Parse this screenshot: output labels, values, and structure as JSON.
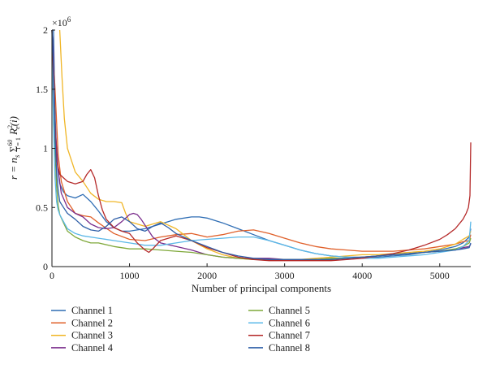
{
  "chart_data": {
    "type": "line",
    "title": "",
    "xlabel": "Number of principal components",
    "ylabel": "r = n_s Σ_{i=1}^{60} R_e^2(i)",
    "ylabel_parts": {
      "main": "r = n",
      "sub_s": "s",
      "sigma": " Σ",
      "sum_sup": "60",
      "sum_sub": "i = 1",
      "term": " R",
      "term_sup": "2",
      "term_sub": "e",
      "arg": "(i)"
    },
    "y_multiplier": "×10",
    "y_multiplier_exp": "6",
    "xlim": [
      0,
      5400
    ],
    "ylim": [
      0,
      2
    ],
    "xticks": [
      0,
      1000,
      2000,
      3000,
      4000,
      5000
    ],
    "xtick_labels": [
      "0",
      "1000",
      "2000",
      "3000",
      "4000",
      "5000"
    ],
    "yticks": [
      0,
      0.5,
      1,
      1.5,
      2
    ],
    "ytick_labels": [
      "0",
      "0.5",
      "1",
      "1.5",
      "2"
    ],
    "grid": false,
    "legend_position": "bottom, two columns",
    "series": [
      {
        "name": "Channel 1",
        "color": "#2e6db4",
        "x": [
          0,
          20,
          40,
          60,
          80,
          100,
          150,
          200,
          300,
          400,
          500,
          600,
          700,
          800,
          900,
          1000,
          1200,
          1400,
          1600,
          1800,
          1900,
          2000,
          2200,
          2400,
          2600,
          2800,
          3000,
          3200,
          3400,
          3600,
          3800,
          4000,
          4200,
          4400,
          4600,
          4800,
          5000,
          5200,
          5300,
          5380,
          5400
        ],
        "y": [
          2.0,
          2.0,
          1.3,
          0.95,
          0.8,
          0.7,
          0.63,
          0.6,
          0.58,
          0.61,
          0.55,
          0.47,
          0.38,
          0.33,
          0.3,
          0.3,
          0.32,
          0.36,
          0.4,
          0.42,
          0.42,
          0.41,
          0.37,
          0.32,
          0.27,
          0.22,
          0.18,
          0.14,
          0.11,
          0.09,
          0.08,
          0.08,
          0.08,
          0.09,
          0.1,
          0.12,
          0.14,
          0.17,
          0.2,
          0.25,
          0.32
        ]
      },
      {
        "name": "Channel 2",
        "color": "#e0602a",
        "x": [
          0,
          40,
          80,
          120,
          200,
          300,
          400,
          500,
          600,
          800,
          1000,
          1200,
          1400,
          1600,
          1800,
          2000,
          2200,
          2400,
          2600,
          2800,
          3000,
          3200,
          3400,
          3600,
          3800,
          4000,
          4200,
          4400,
          4600,
          4800,
          5000,
          5200,
          5300,
          5380,
          5400
        ],
        "y": [
          2.0,
          1.5,
          0.95,
          0.72,
          0.55,
          0.45,
          0.43,
          0.42,
          0.37,
          0.28,
          0.23,
          0.22,
          0.25,
          0.27,
          0.28,
          0.25,
          0.27,
          0.3,
          0.31,
          0.28,
          0.24,
          0.2,
          0.17,
          0.15,
          0.14,
          0.13,
          0.13,
          0.13,
          0.14,
          0.15,
          0.17,
          0.19,
          0.21,
          0.22,
          0.27
        ]
      },
      {
        "name": "Channel 3",
        "color": "#f0b627",
        "x": [
          100,
          130,
          160,
          200,
          300,
          400,
          500,
          600,
          700,
          800,
          900,
          950,
          1000,
          1100,
          1200,
          1400,
          1600,
          1800,
          2000,
          2200,
          2400,
          2600,
          2800,
          3000,
          3200,
          3400,
          3600,
          3800,
          4000,
          4200,
          4400,
          4600,
          4800,
          5000,
          5200,
          5300,
          5380,
          5400
        ],
        "y": [
          2.0,
          1.6,
          1.25,
          1.0,
          0.8,
          0.72,
          0.62,
          0.57,
          0.55,
          0.55,
          0.54,
          0.45,
          0.38,
          0.36,
          0.34,
          0.38,
          0.32,
          0.22,
          0.15,
          0.1,
          0.07,
          0.06,
          0.06,
          0.06,
          0.06,
          0.07,
          0.08,
          0.09,
          0.1,
          0.1,
          0.11,
          0.12,
          0.13,
          0.15,
          0.19,
          0.23,
          0.26,
          0.3
        ]
      },
      {
        "name": "Channel 4",
        "color": "#7a2d8c",
        "x": [
          0,
          20,
          40,
          80,
          120,
          200,
          300,
          400,
          500,
          600,
          700,
          800,
          900,
          1000,
          1050,
          1100,
          1150,
          1200,
          1300,
          1400,
          1600,
          1800,
          2000,
          2200,
          2400,
          2600,
          2800,
          3000,
          3200,
          3400,
          3600,
          3800,
          4000,
          4200,
          4400,
          4600,
          4800,
          5000,
          5200,
          5300,
          5380,
          5400
        ],
        "y": [
          2.0,
          1.8,
          1.2,
          0.82,
          0.62,
          0.5,
          0.45,
          0.42,
          0.36,
          0.33,
          0.32,
          0.33,
          0.38,
          0.44,
          0.45,
          0.44,
          0.4,
          0.35,
          0.25,
          0.2,
          0.17,
          0.14,
          0.1,
          0.08,
          0.07,
          0.07,
          0.07,
          0.06,
          0.06,
          0.06,
          0.06,
          0.07,
          0.08,
          0.09,
          0.1,
          0.11,
          0.12,
          0.13,
          0.14,
          0.16,
          0.17,
          0.19
        ]
      },
      {
        "name": "Channel 5",
        "color": "#7fa83a",
        "x": [
          0,
          20,
          40,
          60,
          80,
          100,
          150,
          200,
          300,
          400,
          500,
          600,
          800,
          1000,
          1200,
          1400,
          1600,
          1800,
          2000,
          2200,
          2400,
          2600,
          2800,
          3000,
          3200,
          3400,
          3600,
          3800,
          4000,
          4200,
          4400,
          4600,
          4800,
          5000,
          5200,
          5300,
          5380,
          5400
        ],
        "y": [
          2.0,
          1.6,
          1.0,
          0.68,
          0.52,
          0.44,
          0.37,
          0.3,
          0.25,
          0.22,
          0.2,
          0.2,
          0.17,
          0.15,
          0.15,
          0.14,
          0.13,
          0.12,
          0.1,
          0.08,
          0.07,
          0.06,
          0.06,
          0.06,
          0.06,
          0.06,
          0.07,
          0.07,
          0.08,
          0.09,
          0.1,
          0.11,
          0.12,
          0.13,
          0.15,
          0.17,
          0.2,
          0.24
        ]
      },
      {
        "name": "Channel 6",
        "color": "#5bb8e8",
        "x": [
          0,
          20,
          40,
          60,
          80,
          100,
          150,
          200,
          300,
          400,
          600,
          800,
          1000,
          1200,
          1400,
          1600,
          1800,
          2000,
          2200,
          2400,
          2600,
          2800,
          3000,
          3200,
          3400,
          3600,
          3800,
          4000,
          4200,
          4400,
          4600,
          4800,
          5000,
          5200,
          5300,
          5380,
          5400
        ],
        "y": [
          2.0,
          1.2,
          0.75,
          0.55,
          0.48,
          0.44,
          0.38,
          0.32,
          0.28,
          0.26,
          0.24,
          0.22,
          0.2,
          0.18,
          0.18,
          0.2,
          0.22,
          0.23,
          0.24,
          0.25,
          0.25,
          0.22,
          0.18,
          0.14,
          0.11,
          0.09,
          0.08,
          0.07,
          0.07,
          0.08,
          0.09,
          0.1,
          0.12,
          0.14,
          0.17,
          0.22,
          0.38
        ]
      },
      {
        "name": "Channel 7",
        "color": "#b52a2a",
        "x": [
          0,
          20,
          40,
          60,
          100,
          150,
          200,
          300,
          400,
          450,
          500,
          550,
          600,
          650,
          700,
          800,
          900,
          1000,
          1100,
          1200,
          1250,
          1300,
          1400,
          1600,
          1800,
          2000,
          2200,
          2400,
          2600,
          2800,
          3000,
          3200,
          3400,
          3600,
          3800,
          4000,
          4200,
          4400,
          4600,
          4800,
          5000,
          5100,
          5200,
          5300,
          5340,
          5370,
          5390,
          5400
        ],
        "y": [
          2.0,
          1.6,
          1.2,
          0.9,
          0.78,
          0.75,
          0.72,
          0.7,
          0.72,
          0.78,
          0.82,
          0.75,
          0.6,
          0.48,
          0.4,
          0.33,
          0.3,
          0.28,
          0.2,
          0.14,
          0.12,
          0.15,
          0.22,
          0.26,
          0.22,
          0.16,
          0.12,
          0.08,
          0.06,
          0.05,
          0.05,
          0.05,
          0.05,
          0.05,
          0.06,
          0.07,
          0.09,
          0.11,
          0.14,
          0.18,
          0.23,
          0.27,
          0.32,
          0.4,
          0.45,
          0.5,
          0.6,
          1.05
        ]
      },
      {
        "name": "Channel 8",
        "color": "#2f5fa8",
        "x": [
          0,
          20,
          40,
          60,
          80,
          100,
          150,
          200,
          300,
          400,
          500,
          600,
          700,
          800,
          900,
          1000,
          1100,
          1200,
          1300,
          1400,
          1500,
          1600,
          1800,
          2000,
          2200,
          2400,
          2600,
          2800,
          3000,
          3200,
          3400,
          3600,
          3800,
          4000,
          4200,
          4400,
          4600,
          4800,
          5000,
          5200,
          5300,
          5380,
          5400
        ],
        "y": [
          2.0,
          1.7,
          1.1,
          0.8,
          0.65,
          0.55,
          0.5,
          0.45,
          0.4,
          0.34,
          0.31,
          0.3,
          0.34,
          0.4,
          0.42,
          0.38,
          0.32,
          0.3,
          0.34,
          0.37,
          0.33,
          0.28,
          0.22,
          0.17,
          0.12,
          0.09,
          0.07,
          0.06,
          0.06,
          0.06,
          0.06,
          0.06,
          0.07,
          0.08,
          0.09,
          0.1,
          0.11,
          0.12,
          0.13,
          0.14,
          0.15,
          0.16,
          0.2
        ]
      }
    ]
  }
}
